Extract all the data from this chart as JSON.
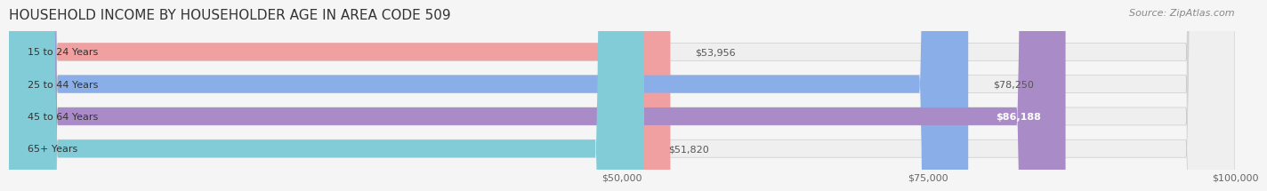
{
  "title": "HOUSEHOLD INCOME BY HOUSEHOLDER AGE IN AREA CODE 509",
  "source": "Source: ZipAtlas.com",
  "categories": [
    "15 to 24 Years",
    "25 to 44 Years",
    "45 to 64 Years",
    "65+ Years"
  ],
  "values": [
    53956,
    78250,
    86188,
    51820
  ],
  "bar_colors": [
    "#f0a0a0",
    "#8aaee8",
    "#a98bc8",
    "#82ccd8"
  ],
  "bar_background": "#efefef",
  "value_labels": [
    "$53,956",
    "$78,250",
    "$86,188",
    "$51,820"
  ],
  "label_inside": [
    false,
    false,
    true,
    false
  ],
  "xmin": 0,
  "xmax": 100000,
  "xticks": [
    50000,
    75000,
    100000
  ],
  "xtick_labels": [
    "$50,000",
    "$75,000",
    "$100,000"
  ],
  "title_fontsize": 11,
  "source_fontsize": 8,
  "bar_height": 0.55,
  "background_color": "#f5f5f5"
}
